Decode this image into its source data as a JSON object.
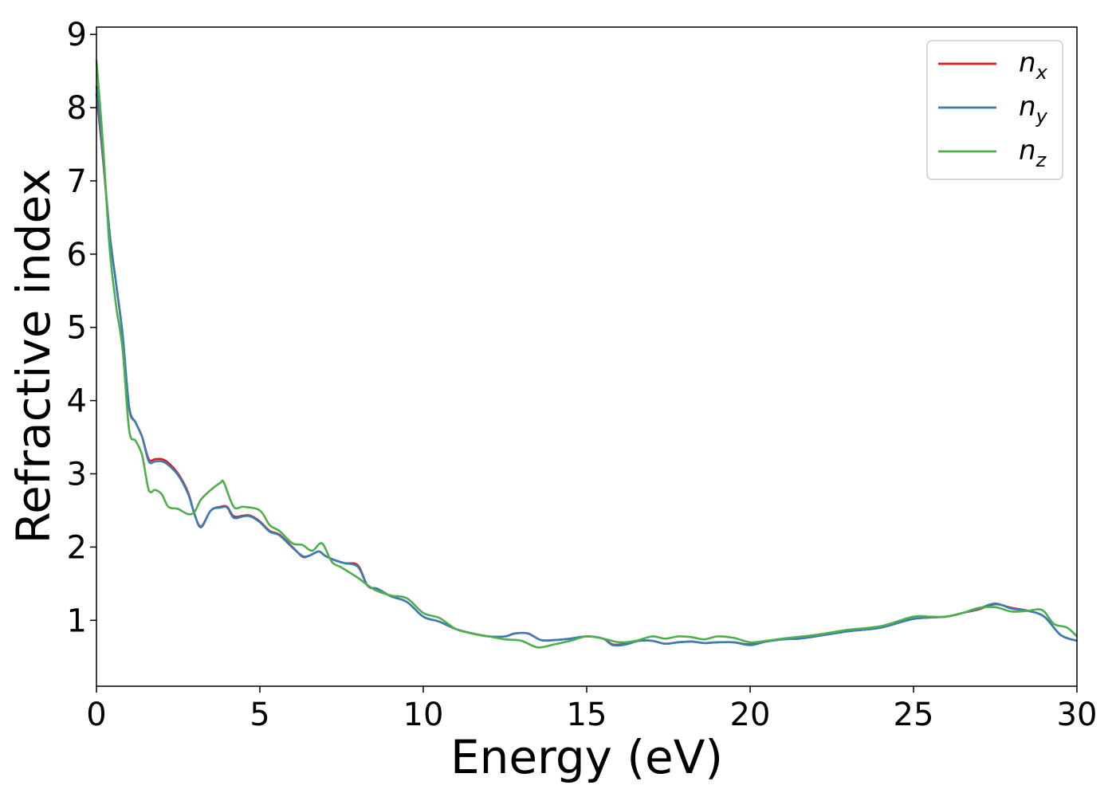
{
  "chart_data": {
    "type": "line",
    "title": "",
    "xlabel": "Energy (eV)",
    "ylabel": "Refractive index",
    "xlim": [
      0,
      30
    ],
    "ylim": [
      0.1,
      9.1
    ],
    "xticks": [
      "0",
      "5",
      "10",
      "15",
      "20",
      "25",
      "30"
    ],
    "yticks": [
      "1",
      "2",
      "3",
      "4",
      "5",
      "6",
      "7",
      "8",
      "9"
    ],
    "grid": false,
    "legend_position": "top-right",
    "series": [
      {
        "name": "n_x",
        "label_base": "n",
        "label_sub": "x",
        "color": "#e41a1c",
        "x": [
          0,
          0.2,
          0.4,
          0.6,
          0.8,
          1.0,
          1.2,
          1.4,
          1.6,
          1.8,
          2.0,
          2.2,
          2.5,
          2.8,
          3.0,
          3.2,
          3.5,
          3.8,
          4.0,
          4.2,
          4.5,
          4.7,
          5.0,
          5.3,
          5.6,
          6.0,
          6.3,
          6.5,
          6.8,
          7.0,
          7.3,
          7.6,
          8.0,
          8.3,
          8.6,
          9.0,
          9.5,
          10.0,
          10.5,
          11.0,
          11.5,
          12.0,
          12.5,
          12.8,
          13.2,
          13.6,
          14.0,
          14.5,
          15.0,
          15.5,
          15.8,
          16.2,
          16.6,
          17.0,
          17.4,
          17.8,
          18.2,
          18.6,
          19.0,
          19.5,
          20.0,
          20.5,
          21.0,
          21.5,
          22.0,
          23.0,
          24.0,
          25.0,
          26.0,
          26.5,
          27.0,
          27.5,
          28.0,
          28.5,
          29.0,
          29.5,
          30.0
        ],
        "values": [
          8.2,
          7.3,
          6.3,
          5.6,
          4.9,
          3.9,
          3.7,
          3.5,
          3.2,
          3.2,
          3.2,
          3.15,
          3.0,
          2.75,
          2.45,
          2.28,
          2.5,
          2.55,
          2.55,
          2.42,
          2.43,
          2.43,
          2.35,
          2.22,
          2.17,
          2.0,
          1.87,
          1.88,
          1.94,
          1.88,
          1.82,
          1.78,
          1.75,
          1.47,
          1.43,
          1.33,
          1.25,
          1.05,
          0.98,
          0.88,
          0.82,
          0.78,
          0.78,
          0.82,
          0.82,
          0.73,
          0.73,
          0.75,
          0.78,
          0.75,
          0.67,
          0.68,
          0.72,
          0.72,
          0.68,
          0.7,
          0.71,
          0.69,
          0.7,
          0.7,
          0.67,
          0.71,
          0.74,
          0.75,
          0.78,
          0.85,
          0.9,
          1.02,
          1.05,
          1.1,
          1.15,
          1.22,
          1.17,
          1.13,
          1.05,
          0.8,
          0.72
        ]
      },
      {
        "name": "n_y",
        "label_base": "n",
        "label_sub": "y",
        "color": "#377eb8",
        "x": [
          0,
          0.2,
          0.4,
          0.6,
          0.8,
          1.0,
          1.2,
          1.4,
          1.6,
          1.8,
          2.0,
          2.2,
          2.5,
          2.8,
          3.0,
          3.2,
          3.5,
          3.8,
          4.0,
          4.2,
          4.5,
          4.7,
          5.0,
          5.3,
          5.6,
          6.0,
          6.3,
          6.5,
          6.8,
          7.0,
          7.3,
          7.6,
          8.0,
          8.3,
          8.6,
          9.0,
          9.5,
          10.0,
          10.5,
          11.0,
          11.5,
          12.0,
          12.5,
          12.8,
          13.2,
          13.6,
          14.0,
          14.5,
          15.0,
          15.5,
          15.8,
          16.2,
          16.6,
          17.0,
          17.4,
          17.8,
          18.2,
          18.6,
          19.0,
          19.5,
          20.0,
          20.5,
          21.0,
          21.5,
          22.0,
          23.0,
          24.0,
          25.0,
          26.0,
          26.5,
          27.0,
          27.5,
          28.0,
          28.5,
          29.0,
          29.5,
          30.0
        ],
        "values": [
          8.3,
          7.35,
          6.3,
          5.6,
          4.9,
          3.92,
          3.7,
          3.5,
          3.17,
          3.17,
          3.17,
          3.12,
          2.98,
          2.73,
          2.45,
          2.27,
          2.5,
          2.54,
          2.54,
          2.4,
          2.42,
          2.42,
          2.34,
          2.21,
          2.16,
          1.99,
          1.88,
          1.88,
          1.94,
          1.88,
          1.82,
          1.78,
          1.73,
          1.47,
          1.43,
          1.33,
          1.25,
          1.05,
          0.98,
          0.88,
          0.82,
          0.78,
          0.78,
          0.82,
          0.82,
          0.73,
          0.73,
          0.75,
          0.78,
          0.75,
          0.66,
          0.67,
          0.72,
          0.72,
          0.68,
          0.7,
          0.71,
          0.69,
          0.7,
          0.7,
          0.66,
          0.71,
          0.74,
          0.75,
          0.78,
          0.85,
          0.9,
          1.02,
          1.05,
          1.1,
          1.16,
          1.23,
          1.16,
          1.13,
          1.05,
          0.8,
          0.72
        ]
      },
      {
        "name": "n_z",
        "label_base": "n",
        "label_sub": "z",
        "color": "#4daf4a",
        "x": [
          0,
          0.2,
          0.4,
          0.6,
          0.8,
          1.0,
          1.2,
          1.4,
          1.6,
          1.8,
          2.0,
          2.2,
          2.5,
          2.8,
          3.0,
          3.2,
          3.5,
          3.8,
          3.9,
          4.2,
          4.5,
          5.0,
          5.3,
          5.6,
          6.0,
          6.3,
          6.6,
          6.9,
          7.2,
          7.5,
          8.0,
          8.5,
          9.0,
          9.5,
          10.0,
          10.5,
          11.0,
          11.5,
          12.0,
          12.5,
          13.0,
          13.5,
          14.0,
          14.5,
          15.0,
          15.5,
          16.0,
          16.5,
          17.0,
          17.4,
          17.8,
          18.2,
          18.6,
          19.0,
          19.5,
          20.0,
          20.5,
          21.0,
          22.0,
          23.0,
          24.0,
          25.0,
          25.5,
          26.0,
          26.5,
          27.0,
          27.5,
          28.0,
          28.5,
          28.8,
          29.0,
          29.3,
          29.7,
          30.0
        ],
        "values": [
          8.65,
          7.5,
          6.1,
          5.3,
          4.7,
          3.6,
          3.45,
          3.25,
          2.78,
          2.78,
          2.72,
          2.55,
          2.52,
          2.45,
          2.48,
          2.65,
          2.78,
          2.88,
          2.88,
          2.55,
          2.55,
          2.5,
          2.3,
          2.22,
          2.05,
          2.03,
          1.95,
          2.05,
          1.8,
          1.72,
          1.58,
          1.42,
          1.34,
          1.3,
          1.1,
          1.03,
          0.88,
          0.82,
          0.78,
          0.74,
          0.72,
          0.63,
          0.67,
          0.72,
          0.78,
          0.75,
          0.7,
          0.72,
          0.78,
          0.75,
          0.78,
          0.77,
          0.74,
          0.78,
          0.76,
          0.7,
          0.72,
          0.75,
          0.8,
          0.87,
          0.92,
          1.05,
          1.05,
          1.05,
          1.1,
          1.17,
          1.18,
          1.12,
          1.13,
          1.15,
          1.12,
          0.95,
          0.9,
          0.78
        ]
      }
    ]
  }
}
